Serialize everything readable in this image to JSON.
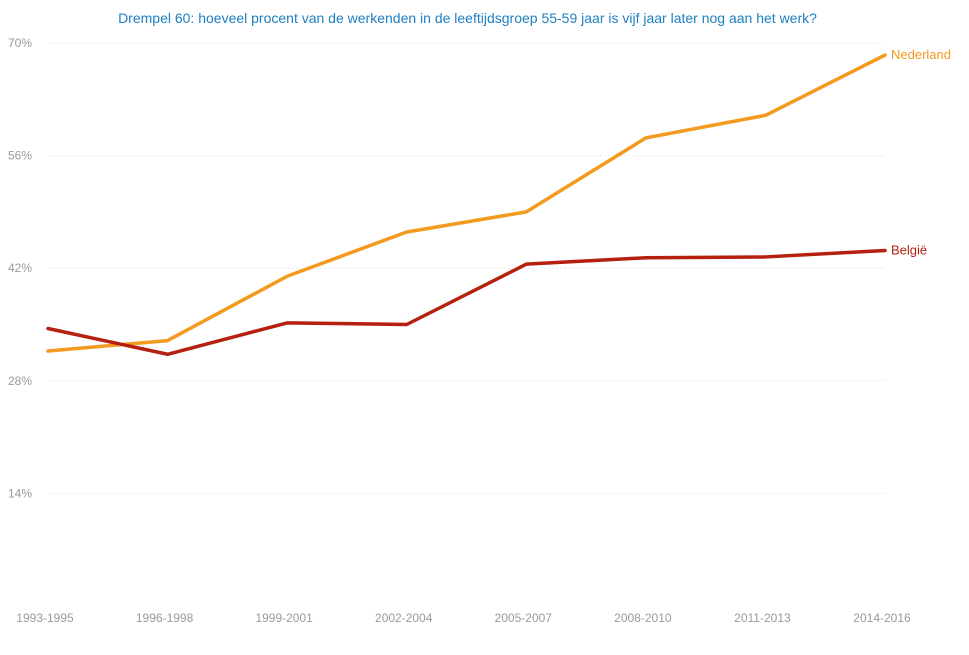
{
  "chart_data": {
    "type": "line",
    "title": "Drempel 60: hoeveel procent van de werkenden in de leeftijdsgroep 55-59 jaar is vijf jaar later nog aan het werk?",
    "xlabel": "",
    "ylabel": "",
    "categories": [
      "1993-1995",
      "1996-1998",
      "1999-2001",
      "2002-2004",
      "2005-2007",
      "2008-2010",
      "2011-2013",
      "2014-2016"
    ],
    "ylim": [
      0,
      70
    ],
    "yticks": [
      14,
      28,
      42,
      56,
      70
    ],
    "ytick_labels": [
      "14%",
      "28%",
      "42%",
      "56%",
      "70%"
    ],
    "grid": true,
    "legend": "inline labels at line ends",
    "series": [
      {
        "name": "Nederland",
        "color": "#f39a1f",
        "values": [
          31.7,
          33.0,
          41.0,
          46.5,
          49.0,
          58.2,
          61.0,
          68.5
        ]
      },
      {
        "name": "België",
        "color": "#b5200f",
        "values": [
          34.5,
          31.3,
          35.2,
          35.0,
          42.5,
          43.3,
          43.4,
          44.2
        ]
      }
    ]
  }
}
